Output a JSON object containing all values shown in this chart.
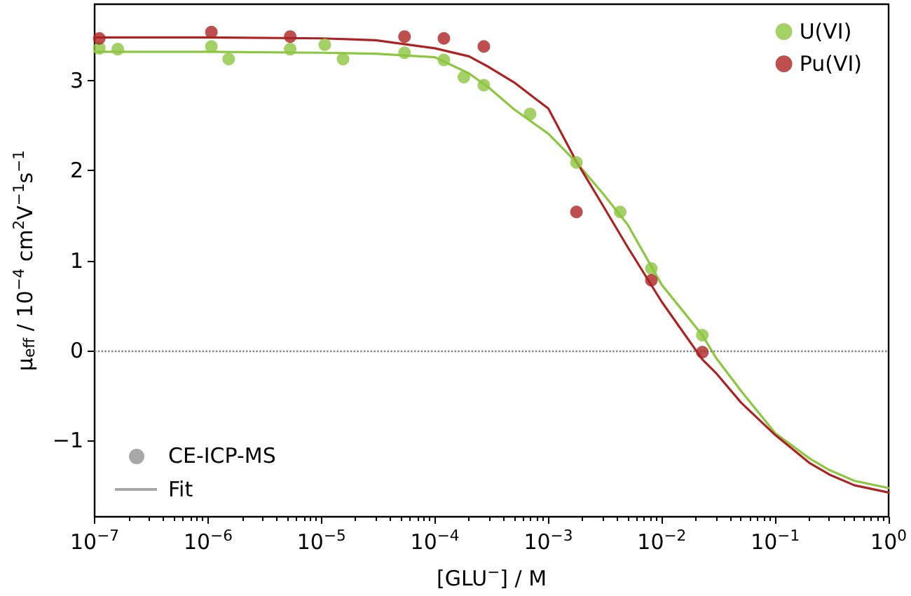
{
  "chart_data": {
    "type": "scatter",
    "xlabel": "[GLU$^{−}$] / M",
    "ylabel": "μ$_{eff}$ / 10$^{−4}$ cm$^{2}$V$^{−1}$s$^{−1}$",
    "log": "x",
    "xlim": [
      1e-07,
      1
    ],
    "ylim": [
      -1.85,
      3.85
    ],
    "xticks": [
      {
        "value": 1e-07,
        "label": "10$^{−7}$"
      },
      {
        "value": 1e-06,
        "label": "10$^{−6}$"
      },
      {
        "value": 1e-05,
        "label": "10$^{−5}$"
      },
      {
        "value": 0.0001,
        "label": "10$^{−4}$"
      },
      {
        "value": 0.001,
        "label": "10$^{−3}$"
      },
      {
        "value": 0.01,
        "label": "10$^{−2}$"
      },
      {
        "value": 0.1,
        "label": "10$^{−1}$"
      },
      {
        "value": 1,
        "label": "10$^{0}$"
      }
    ],
    "yticks": [
      {
        "value": -1,
        "label": "−1"
      },
      0,
      1,
      2,
      3
    ],
    "grid": false,
    "legend": "top right",
    "marker": "circle",
    "ref_lines": [
      {
        "axis": "y",
        "value": 0,
        "color": "#808080",
        "line_style": "dotted"
      }
    ],
    "annotations": [
      "CE-ICP-MS",
      "Fit"
    ],
    "series": [
      {
        "name": "U(VI)",
        "color": "#8dc63f",
        "x": [
          1.1e-07,
          1.6e-07,
          1.07e-06,
          1.52e-06,
          5.3e-06,
          1.07e-05,
          1.55e-05,
          5.4e-05,
          0.00012,
          0.00018,
          0.00027,
          0.00069,
          0.00177,
          0.0043,
          0.0081,
          0.0228
        ],
        "values": [
          3.36,
          3.35,
          3.38,
          3.24,
          3.35,
          3.4,
          3.24,
          3.31,
          3.23,
          3.04,
          2.95,
          2.63,
          2.09,
          1.54,
          0.91,
          0.17
        ]
      },
      {
        "name": "Pu(VI)",
        "color": "#ad2323",
        "x": [
          1.1e-07,
          1.07e-06,
          5.3e-06,
          5.4e-05,
          0.00012,
          0.00027,
          0.00177,
          0.0081,
          0.0228
        ],
        "values": [
          3.47,
          3.54,
          3.49,
          3.49,
          3.47,
          3.38,
          1.54,
          0.78,
          -0.02
        ]
      },
      {
        "color": "#8dc63f",
        "type": "line",
        "marker": "none",
        "x": [
          1e-07,
          1e-06,
          1e-05,
          3e-05,
          0.0001,
          0.0002,
          0.0003,
          0.0005,
          0.001,
          0.00177,
          0.003,
          0.005,
          0.01,
          0.0228,
          0.03,
          0.05,
          0.1,
          0.2,
          0.3,
          0.5,
          1
        ],
        "values": [
          3.32,
          3.32,
          3.31,
          3.3,
          3.26,
          3.08,
          2.92,
          2.68,
          2.41,
          2.09,
          1.75,
          1.4,
          0.73,
          0.17,
          -0.08,
          -0.45,
          -0.92,
          -1.2,
          -1.33,
          -1.45,
          -1.53
        ]
      },
      {
        "color": "#ad2323",
        "type": "line",
        "marker": "none",
        "x": [
          1e-07,
          1e-06,
          1e-05,
          3e-05,
          0.0001,
          0.0002,
          0.0003,
          0.0005,
          0.001,
          0.00177,
          0.003,
          0.005,
          0.01,
          0.0228,
          0.03,
          0.05,
          0.1,
          0.2,
          0.3,
          0.5,
          1
        ],
        "values": [
          3.48,
          3.48,
          3.47,
          3.45,
          3.36,
          3.27,
          3.15,
          2.98,
          2.69,
          2.1,
          1.62,
          1.15,
          0.54,
          -0.1,
          -0.25,
          -0.58,
          -0.94,
          -1.25,
          -1.38,
          -1.5,
          -1.58
        ]
      }
    ]
  }
}
